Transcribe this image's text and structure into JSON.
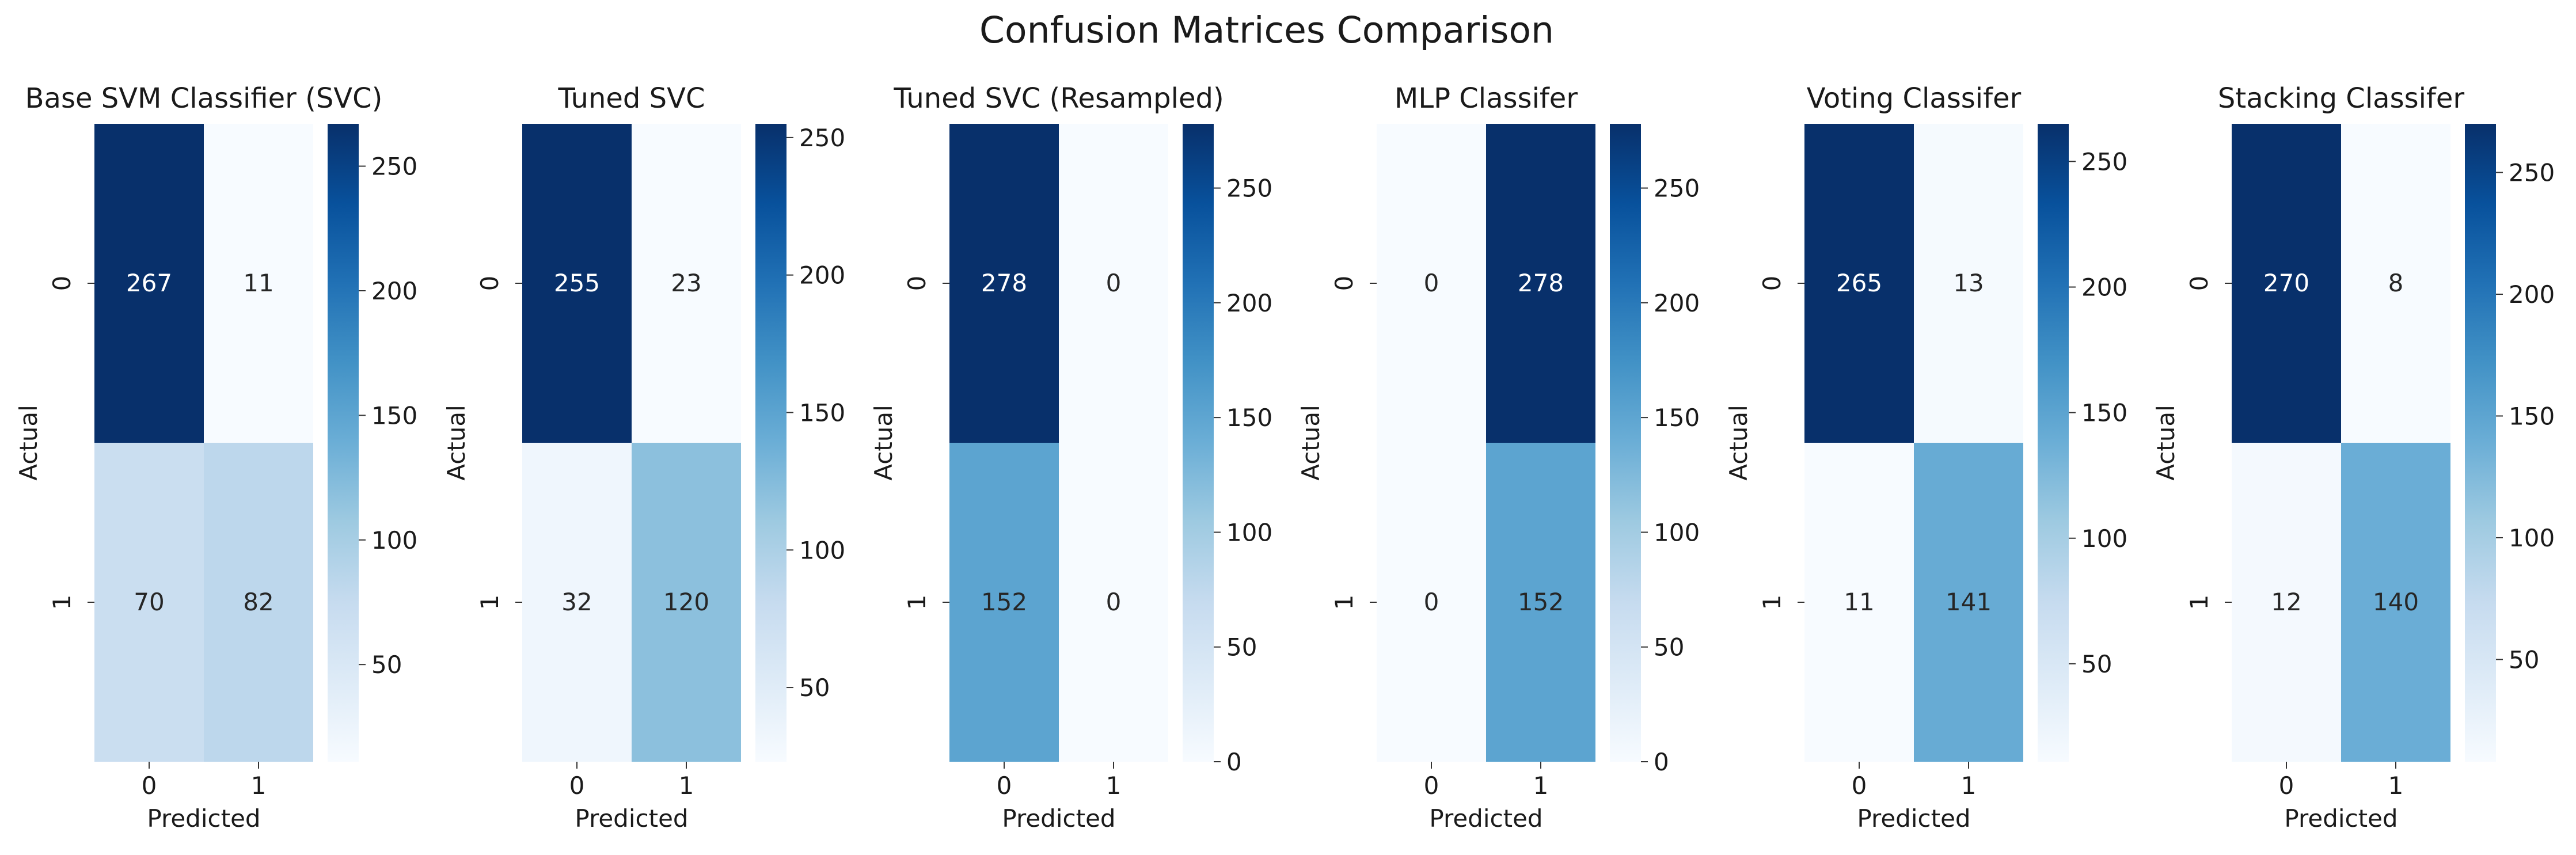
{
  "chart_data": {
    "type": "heatmap",
    "title": "Confusion Matrices Comparison",
    "colormap": "Blues",
    "xlabel": "Predicted",
    "ylabel": "Actual",
    "x_ticks": [
      "0",
      "1"
    ],
    "y_ticks": [
      "0",
      "1"
    ],
    "panels": [
      {
        "title": "Base SVM Classifier (SVC)",
        "matrix": [
          [
            267,
            11
          ],
          [
            70,
            82
          ]
        ],
        "colorbar_range": [
          11,
          267
        ],
        "colorbar_ticks": [
          50,
          100,
          150,
          200,
          250
        ]
      },
      {
        "title": "Tuned SVC",
        "matrix": [
          [
            255,
            23
          ],
          [
            32,
            120
          ]
        ],
        "colorbar_range": [
          23,
          255
        ],
        "colorbar_ticks": [
          50,
          100,
          150,
          200,
          250
        ]
      },
      {
        "title": "Tuned SVC (Resampled)",
        "matrix": [
          [
            278,
            0
          ],
          [
            152,
            0
          ]
        ],
        "colorbar_range": [
          0,
          278
        ],
        "colorbar_ticks": [
          0,
          50,
          100,
          150,
          200,
          250
        ]
      },
      {
        "title": "MLP Classifer",
        "matrix": [
          [
            0,
            278
          ],
          [
            0,
            152
          ]
        ],
        "colorbar_range": [
          0,
          278
        ],
        "colorbar_ticks": [
          0,
          50,
          100,
          150,
          200,
          250
        ]
      },
      {
        "title": "Voting Classifer",
        "matrix": [
          [
            265,
            13
          ],
          [
            11,
            141
          ]
        ],
        "colorbar_range": [
          11,
          265
        ],
        "colorbar_ticks": [
          50,
          100,
          150,
          200,
          250
        ]
      },
      {
        "title": "Stacking Classifer",
        "matrix": [
          [
            270,
            8
          ],
          [
            12,
            140
          ]
        ],
        "colorbar_range": [
          8,
          270
        ],
        "colorbar_ticks": [
          50,
          100,
          150,
          200,
          250
        ]
      }
    ]
  }
}
